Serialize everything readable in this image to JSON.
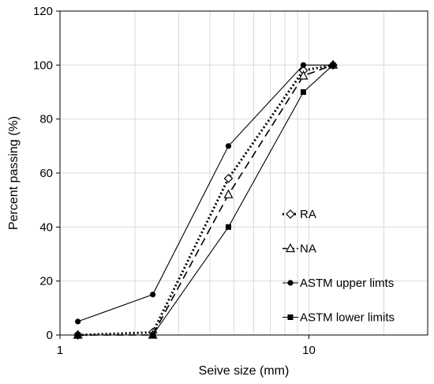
{
  "chart_data": {
    "type": "line",
    "xlabel": "Seive size (mm)",
    "ylabel": "Percent passing (%)",
    "xscale": "log",
    "xlim": [
      1,
      30
    ],
    "ylim": [
      0,
      120
    ],
    "xticks": [
      1,
      10
    ],
    "xtick_labels": [
      "1",
      "10"
    ],
    "yticks": [
      0,
      20,
      40,
      60,
      80,
      100,
      120
    ],
    "ytick_labels": [
      "0",
      "20",
      "40",
      "60",
      "80",
      "100",
      "120"
    ],
    "grid": true,
    "legend_position": "right",
    "series": [
      {
        "name": "RA",
        "line": "dotted",
        "marker": "diamond-open",
        "x": [
          1.18,
          2.36,
          4.75,
          9.5,
          12.5
        ],
        "y": [
          0,
          1,
          58,
          98,
          100
        ]
      },
      {
        "name": "NA",
        "line": "dashed",
        "marker": "triangle-open",
        "x": [
          1.18,
          2.36,
          4.75,
          9.5,
          12.5
        ],
        "y": [
          0,
          0,
          52,
          96,
          100
        ]
      },
      {
        "name": "ASTM upper limts",
        "line": "solid",
        "marker": "circle-filled",
        "x": [
          1.18,
          2.36,
          4.75,
          9.5,
          12.5
        ],
        "y": [
          5,
          15,
          70,
          100,
          100
        ]
      },
      {
        "name": "ASTM lower limits",
        "line": "solid",
        "marker": "square-filled",
        "x": [
          1.18,
          2.36,
          4.75,
          9.5,
          12.5
        ],
        "y": [
          0,
          0,
          40,
          90,
          100
        ]
      }
    ]
  }
}
